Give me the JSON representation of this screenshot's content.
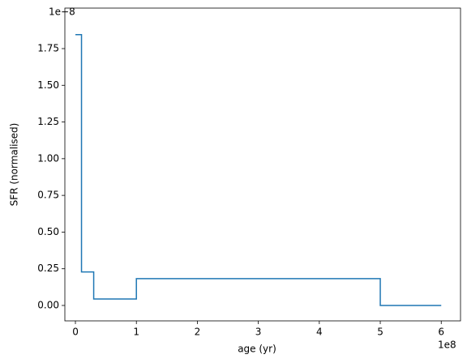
{
  "chart_data": {
    "type": "line",
    "xlabel": "age (yr)",
    "ylabel": "SFR (normalised)",
    "x_offset_label": "1e8",
    "y_offset_label": "1e−8",
    "x": [
      0,
      0.1,
      0.1,
      0.3,
      0.3,
      1,
      1,
      5,
      5,
      6
    ],
    "series": [
      {
        "color": "#1f77b4",
        "values": [
          1.845,
          1.845,
          0.228,
          0.228,
          0.044,
          0.044,
          0.183,
          0.183,
          0,
          0
        ]
      }
    ],
    "xlim": [
      -0.173,
      6.316
    ],
    "ylim": [
      -0.105,
      2.026
    ],
    "xticks": [
      0,
      1,
      2,
      3,
      4,
      5,
      6
    ],
    "yticks": [
      {
        "value": 0,
        "label": "0.00"
      },
      0.25,
      {
        "value": 0.5,
        "label": "0.50"
      },
      0.75,
      {
        "value": 1,
        "label": "1.00"
      },
      1.25,
      {
        "value": 1.5,
        "label": "1.50"
      },
      1.75
    ]
  }
}
